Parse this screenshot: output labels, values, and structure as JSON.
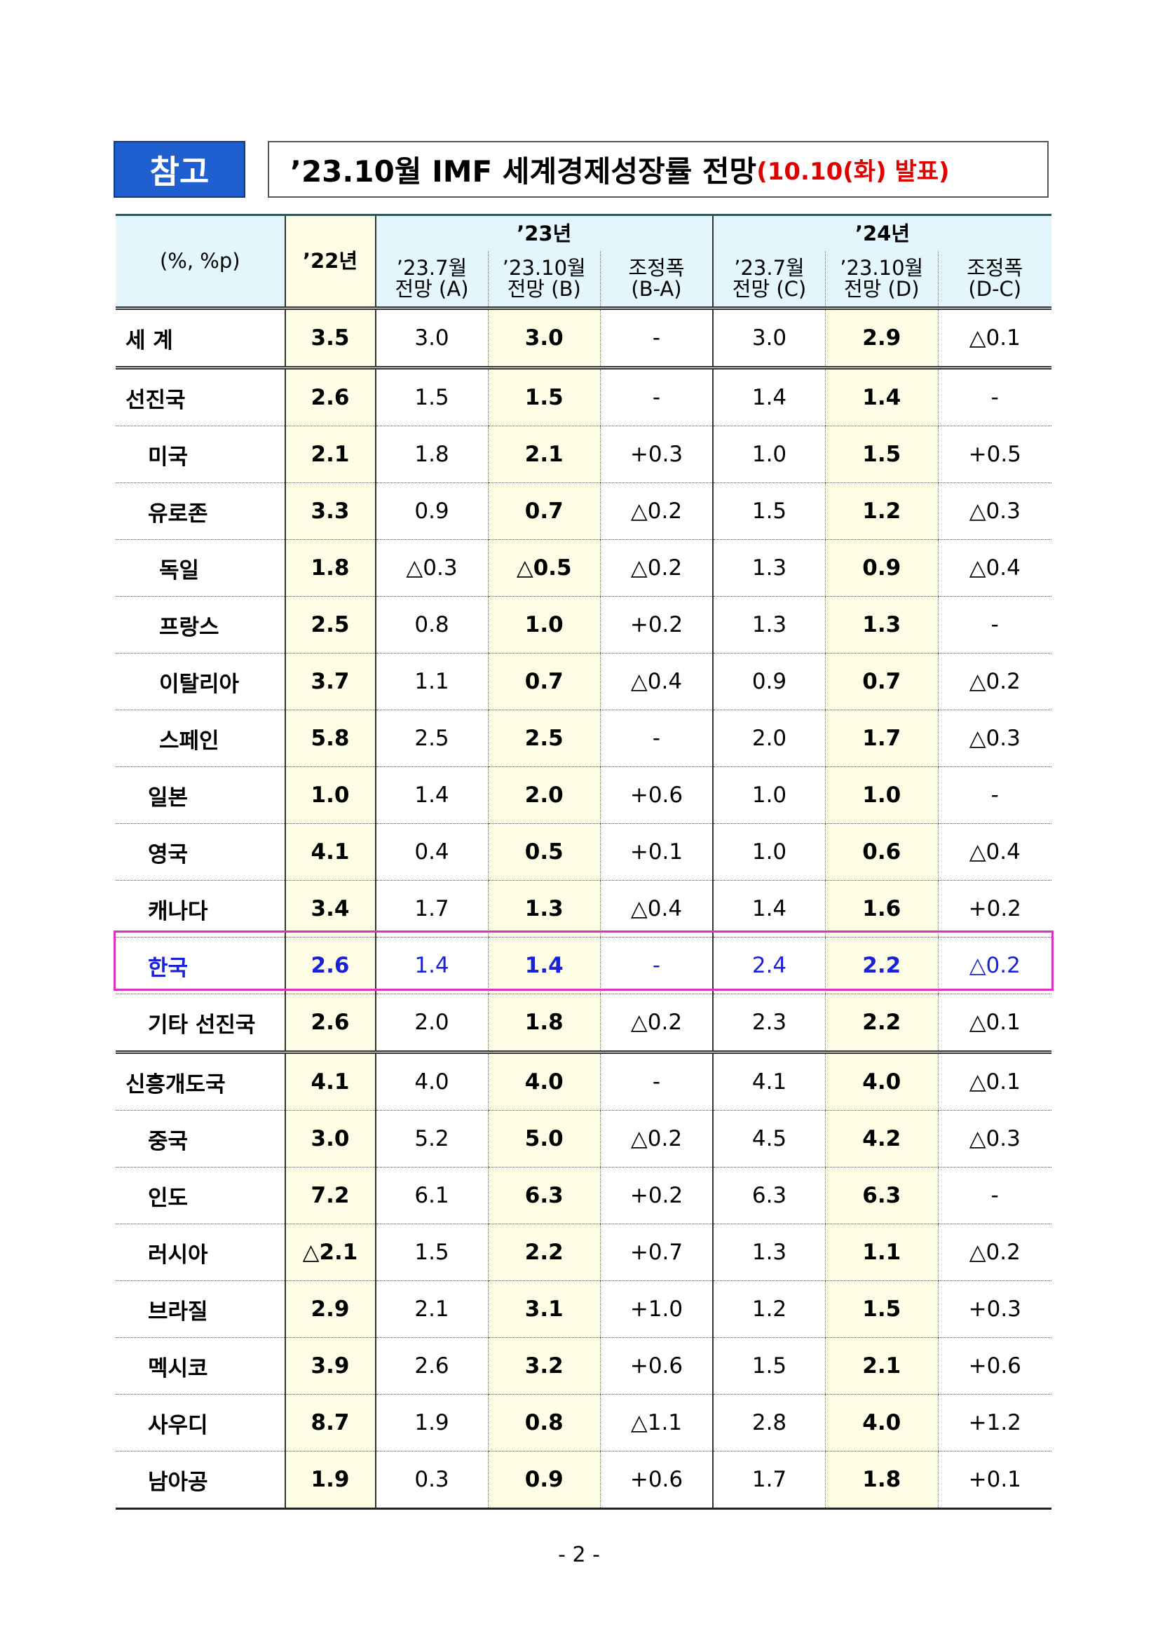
{
  "header": {
    "badge": "참고",
    "title": "’23.10월 IMF 세계경제성장률 전망",
    "date_note": "(10.10(화) 발표)"
  },
  "table": {
    "unit_label": "(%, %p)",
    "year_22": "’22년",
    "groups": [
      "’23년",
      "’24년"
    ],
    "columns": [
      [
        "’23.7월",
        "전망 (A)"
      ],
      [
        "’23.10월",
        "전망 (B)"
      ],
      [
        "조정폭",
        "(B-A)"
      ],
      [
        "’23.7월",
        "전망 (C)"
      ],
      [
        "’23.10월",
        "전망 (D)"
      ],
      [
        "조정폭",
        "(D-C)"
      ]
    ],
    "rows": [
      [
        "세 계",
        "3.5",
        "3.0",
        "3.0",
        "-",
        "3.0",
        "2.9",
        "△0.1"
      ],
      [
        "선진국",
        "2.6",
        "1.5",
        "1.5",
        "-",
        "1.4",
        "1.4",
        "-"
      ],
      [
        "미국",
        "2.1",
        "1.8",
        "2.1",
        "+0.3",
        "1.0",
        "1.5",
        "+0.5"
      ],
      [
        "유로존",
        "3.3",
        "0.9",
        "0.7",
        "△0.2",
        "1.5",
        "1.2",
        "△0.3"
      ],
      [
        "독일",
        "1.8",
        "△0.3",
        "△0.5",
        "△0.2",
        "1.3",
        "0.9",
        "△0.4"
      ],
      [
        "프랑스",
        "2.5",
        "0.8",
        "1.0",
        "+0.2",
        "1.3",
        "1.3",
        "-"
      ],
      [
        "이탈리아",
        "3.7",
        "1.1",
        "0.7",
        "△0.4",
        "0.9",
        "0.7",
        "△0.2"
      ],
      [
        "스페인",
        "5.8",
        "2.5",
        "2.5",
        "-",
        "2.0",
        "1.7",
        "△0.3"
      ],
      [
        "일본",
        "1.0",
        "1.4",
        "2.0",
        "+0.6",
        "1.0",
        "1.0",
        "-"
      ],
      [
        "영국",
        "4.1",
        "0.4",
        "0.5",
        "+0.1",
        "1.0",
        "0.6",
        "△0.4"
      ],
      [
        "캐나다",
        "3.4",
        "1.7",
        "1.3",
        "△0.4",
        "1.4",
        "1.6",
        "+0.2"
      ],
      [
        "한국",
        "2.6",
        "1.4",
        "1.4",
        "-",
        "2.4",
        "2.2",
        "△0.2"
      ],
      [
        "기타 선진국",
        "2.6",
        "2.0",
        "1.8",
        "△0.2",
        "2.3",
        "2.2",
        "△0.1"
      ],
      [
        "신흥개도국",
        "4.1",
        "4.0",
        "4.0",
        "-",
        "4.1",
        "4.0",
        "△0.1"
      ],
      [
        "중국",
        "3.0",
        "5.2",
        "5.0",
        "△0.2",
        "4.5",
        "4.2",
        "△0.3"
      ],
      [
        "인도",
        "7.2",
        "6.1",
        "6.3",
        "+0.2",
        "6.3",
        "6.3",
        "-"
      ],
      [
        "러시아",
        "△2.1",
        "1.5",
        "2.2",
        "+0.7",
        "1.3",
        "1.1",
        "△0.2"
      ],
      [
        "브라질",
        "2.9",
        "2.1",
        "3.1",
        "+1.0",
        "1.2",
        "1.5",
        "+0.3"
      ],
      [
        "멕시코",
        "3.9",
        "2.6",
        "3.2",
        "+0.6",
        "1.5",
        "2.1",
        "+0.6"
      ],
      [
        "사우디",
        "8.7",
        "1.9",
        "0.8",
        "△1.1",
        "2.8",
        "4.0",
        "+1.2"
      ],
      [
        "남아공",
        "1.9",
        "0.3",
        "0.9",
        "+0.6",
        "1.7",
        "1.8",
        "+0.1"
      ]
    ]
  },
  "footer": {
    "page": "- 2 -"
  }
}
